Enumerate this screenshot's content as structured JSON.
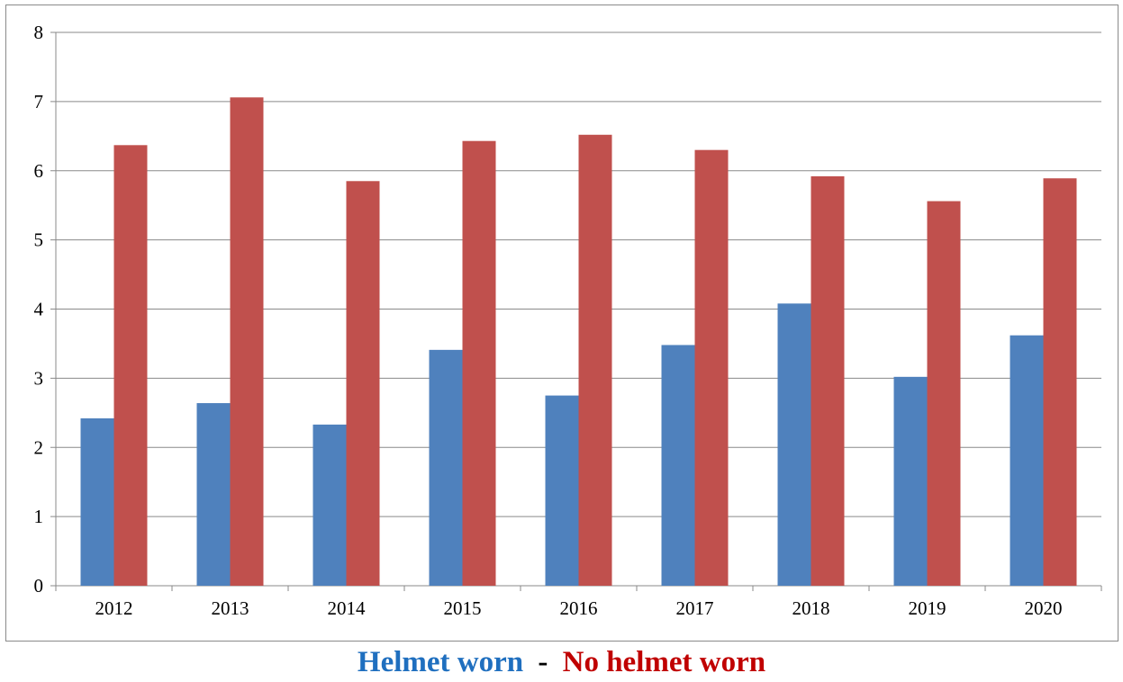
{
  "chart_data": {
    "type": "bar",
    "categories": [
      "2012",
      "2013",
      "2014",
      "2015",
      "2016",
      "2017",
      "2018",
      "2019",
      "2020"
    ],
    "series": [
      {
        "name": "Helmet worn",
        "color": "#4f81bd",
        "values": [
          2.42,
          2.64,
          2.33,
          3.41,
          2.75,
          3.48,
          4.08,
          3.02,
          3.62
        ]
      },
      {
        "name": "No helmet worn",
        "color": "#c0504d",
        "values": [
          6.37,
          7.06,
          5.85,
          6.43,
          6.52,
          6.3,
          5.92,
          5.56,
          5.89
        ]
      }
    ],
    "yticks": [
      "0",
      "1",
      "2",
      "3",
      "4",
      "5",
      "6",
      "7",
      "8"
    ],
    "ylim": [
      0,
      8
    ],
    "grid": true,
    "legend_placement": "bottom",
    "title": "",
    "xlabel": "",
    "ylabel": ""
  },
  "legend": {
    "helmet_label": "Helmet worn",
    "separator": "-",
    "no_helmet_label": "No helmet worn",
    "helmet_color": "#1f6fbf",
    "separator_color": "#000000",
    "no_helmet_color": "#c00000"
  }
}
